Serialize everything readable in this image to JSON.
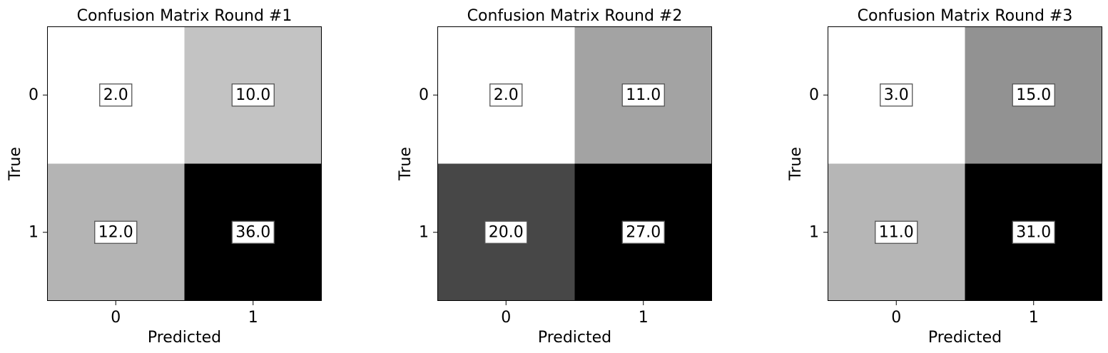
{
  "chart_data": [
    {
      "type": "heatmap",
      "title": "Confusion Matrix Round #1",
      "xlabel": "Predicted",
      "ylabel": "True",
      "x_ticks": [
        "0",
        "1"
      ],
      "y_ticks": [
        "0",
        "1"
      ],
      "values": [
        [
          2.0,
          10.0
        ],
        [
          12.0,
          36.0
        ]
      ],
      "value_labels": [
        [
          "2.0",
          "10.0"
        ],
        [
          "12.0",
          "36.0"
        ]
      ],
      "colormap": "greys",
      "grid": false
    },
    {
      "type": "heatmap",
      "title": "Confusion Matrix Round #2",
      "xlabel": "Predicted",
      "ylabel": "True",
      "x_ticks": [
        "0",
        "1"
      ],
      "y_ticks": [
        "0",
        "1"
      ],
      "values": [
        [
          2.0,
          11.0
        ],
        [
          20.0,
          27.0
        ]
      ],
      "value_labels": [
        [
          "2.0",
          "11.0"
        ],
        [
          "20.0",
          "27.0"
        ]
      ],
      "colormap": "greys",
      "grid": false
    },
    {
      "type": "heatmap",
      "title": "Confusion Matrix Round #3",
      "xlabel": "Predicted",
      "ylabel": "True",
      "x_ticks": [
        "0",
        "1"
      ],
      "y_ticks": [
        "0",
        "1"
      ],
      "values": [
        [
          3.0,
          15.0
        ],
        [
          11.0,
          31.0
        ]
      ],
      "value_labels": [
        [
          "3.0",
          "15.0"
        ],
        [
          "11.0",
          "31.0"
        ]
      ],
      "colormap": "greys",
      "grid": false
    }
  ]
}
